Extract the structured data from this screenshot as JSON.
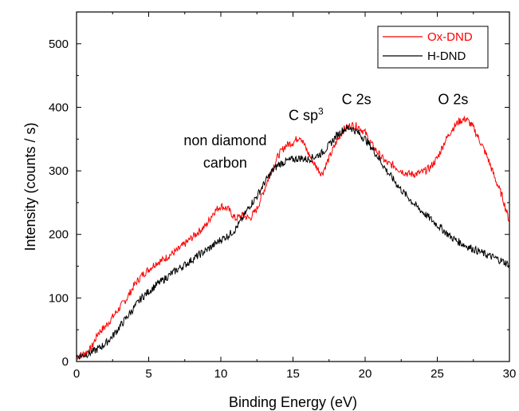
{
  "chart_data": {
    "type": "line",
    "xlabel": "Binding Energy (eV)",
    "ylabel": "Intensity (counts / s)",
    "xlim": [
      0,
      30
    ],
    "ylim": [
      0,
      550
    ],
    "xticks": [
      0,
      5,
      10,
      15,
      20,
      25,
      30
    ],
    "xtick_labels": [
      "0",
      "5",
      "10",
      "15",
      "20",
      "25",
      "30"
    ],
    "yticks": [
      0,
      100,
      200,
      300,
      400,
      500
    ],
    "ytick_labels": [
      "0",
      "100",
      "200",
      "300",
      "400",
      "500"
    ],
    "grid": false,
    "legend_position": "top-right",
    "series": [
      {
        "name": "Ox-DND",
        "color": "#ff0000",
        "x": [
          0,
          0.5,
          1,
          1.5,
          2,
          2.5,
          3,
          3.5,
          4,
          4.5,
          5,
          5.5,
          6,
          6.5,
          7,
          7.5,
          8,
          8.5,
          9,
          9.5,
          10,
          10.5,
          11,
          11.5,
          12,
          12.5,
          13,
          13.5,
          14,
          14.5,
          15,
          15.5,
          16,
          16.5,
          17,
          17.5,
          18,
          18.5,
          19,
          19.5,
          20,
          20.5,
          21,
          21.5,
          22,
          22.5,
          23,
          23.5,
          24,
          24.5,
          25,
          25.5,
          26,
          26.5,
          27,
          27.5,
          28,
          28.5,
          29,
          29.5,
          30
        ],
        "y": [
          8,
          12,
          20,
          45,
          55,
          70,
          85,
          100,
          120,
          135,
          145,
          155,
          160,
          168,
          175,
          185,
          195,
          205,
          215,
          235,
          245,
          240,
          225,
          230,
          225,
          240,
          270,
          300,
          325,
          340,
          345,
          355,
          330,
          310,
          295,
          320,
          345,
          365,
          372,
          370,
          360,
          340,
          325,
          312,
          308,
          300,
          295,
          295,
          298,
          305,
          320,
          345,
          365,
          378,
          382,
          368,
          345,
          320,
          288,
          260,
          220
        ]
      },
      {
        "name": "H-DND",
        "color": "#000000",
        "x": [
          0,
          0.5,
          1,
          1.5,
          2,
          2.5,
          3,
          3.5,
          4,
          4.5,
          5,
          5.5,
          6,
          6.5,
          7,
          7.5,
          8,
          8.5,
          9,
          9.5,
          10,
          10.5,
          11,
          11.5,
          12,
          12.5,
          13,
          13.5,
          14,
          14.5,
          15,
          15.5,
          16,
          16.5,
          17,
          17.5,
          18,
          18.5,
          19,
          19.5,
          20,
          20.5,
          21,
          21.5,
          22,
          22.5,
          23,
          23.5,
          24,
          24.5,
          25,
          25.5,
          26,
          26.5,
          27,
          27.5,
          28,
          28.5,
          29,
          29.5,
          30
        ],
        "y": [
          8,
          10,
          14,
          20,
          28,
          40,
          55,
          70,
          85,
          100,
          110,
          120,
          128,
          137,
          145,
          152,
          160,
          168,
          175,
          183,
          192,
          198,
          208,
          225,
          245,
          260,
          280,
          298,
          310,
          315,
          318,
          320,
          318,
          322,
          328,
          340,
          355,
          365,
          368,
          360,
          350,
          335,
          318,
          300,
          285,
          270,
          258,
          245,
          235,
          225,
          215,
          205,
          195,
          188,
          182,
          177,
          172,
          167,
          163,
          158,
          152
        ]
      }
    ],
    "annotations": [
      {
        "text": "non diamond",
        "x": 10.3,
        "y": 340
      },
      {
        "text": "carbon",
        "x": 10.3,
        "y": 305
      },
      {
        "text": "C sp",
        "sup": "3",
        "x": 15.9,
        "y": 380
      },
      {
        "text": "C 2s",
        "x": 19.4,
        "y": 405
      },
      {
        "text": "O 2s",
        "x": 26.1,
        "y": 405
      }
    ]
  }
}
